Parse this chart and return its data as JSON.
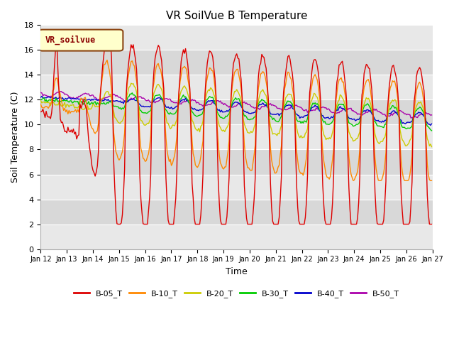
{
  "title": "VR SoilVue B Temperature",
  "xlabel": "Time",
  "ylabel": "Soil Temperature (C)",
  "ylim": [
    0,
    18
  ],
  "background_color": "#ffffff",
  "plot_bg_color": "#e0e0e0",
  "stripe_color": "#cccccc",
  "grid_color": "#ffffff",
  "series_colors": {
    "B-05_T": "#dd0000",
    "B-10_T": "#ff8800",
    "B-20_T": "#cccc00",
    "B-30_T": "#00cc00",
    "B-40_T": "#0000cc",
    "B-50_T": "#aa00aa"
  },
  "legend_label": "VR_soilvue",
  "tick_labels": [
    "Jan 12",
    "Jan 13",
    "Jan 14",
    "Jan 15",
    "Jan 16",
    "Jan 17",
    "Jan 18",
    "Jan 19",
    "Jan 20",
    "Jan 21",
    "Jan 22",
    "Jan 23",
    "Jan 24",
    "Jan 25",
    "Jan 26",
    "Jan 27"
  ],
  "line_width": 1.0
}
